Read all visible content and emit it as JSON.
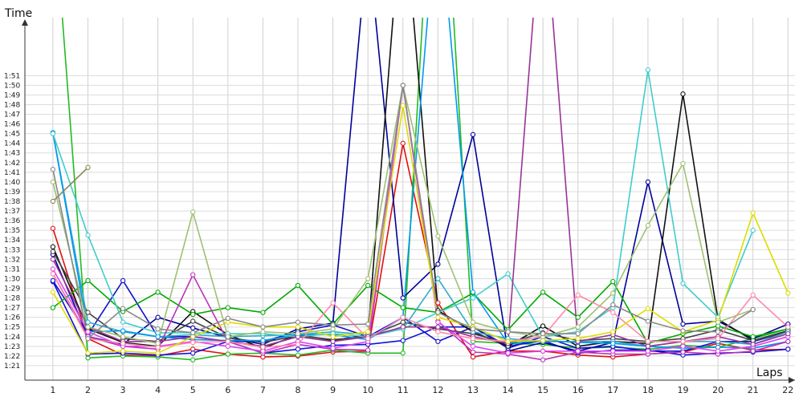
{
  "chart_data": {
    "type": "line",
    "xlabel": "Laps",
    "ylabel": "Time",
    "x": [
      1,
      2,
      3,
      4,
      5,
      6,
      7,
      8,
      9,
      10,
      11,
      12,
      13,
      14,
      15,
      16,
      17,
      18,
      19,
      20,
      21,
      22
    ],
    "xlim": [
      0.2,
      22.2
    ],
    "ylim": [
      79.5,
      117
    ],
    "y_ticks": [
      "1:21",
      "1:22",
      "1:23",
      "1:24",
      "1:25",
      "1:26",
      "1:27",
      "1:28",
      "1:29",
      "1:30",
      "1:31",
      "1:32",
      "1:33",
      "1:34",
      "1:35",
      "1:36",
      "1:37",
      "1:38",
      "1:39",
      "1:40",
      "1:41",
      "1:42",
      "1:43",
      "1:44",
      "1:45",
      "1:46",
      "1:47",
      "1:48",
      "1:49",
      "1:50",
      "1:51"
    ],
    "grid": true,
    "legend": "none",
    "series": [
      {
        "color": "#e01010",
        "values": [
          95.2,
          83.8,
          82.1,
          82.0,
          82.7,
          82.2,
          81.9,
          82.0,
          82.4,
          82.5,
          104.0,
          87.5,
          81.9,
          82.5,
          82.5,
          82.1,
          81.9,
          82.2,
          82.4,
          83.3,
          82.6,
          82.7
        ]
      },
      {
        "color": "#22bb22",
        "values": [
          130,
          81.8,
          82.0,
          81.9,
          81.6,
          82.2,
          82.3,
          82.1,
          82.6,
          82.3,
          82.3,
          144,
          83.5,
          83.3,
          83.2,
          82.8,
          82.9,
          82.7,
          83.1,
          82.9,
          83.8,
          84.8
        ]
      },
      {
        "color": "#1010dd",
        "values": [
          89.7,
          82.2,
          82.3,
          82.1,
          82.3,
          83.5,
          82.3,
          82.7,
          83.1,
          83.2,
          83.6,
          85.0,
          85.0,
          83.0,
          83.6,
          82.3,
          82.6,
          82.6,
          82.1,
          82.3,
          82.4,
          82.7
        ]
      },
      {
        "color": "#000099",
        "values": [
          92.5,
          84.0,
          83.2,
          86.0,
          84.9,
          83.9,
          83.2,
          84.8,
          85.4,
          125,
          88.0,
          91.5,
          104.9,
          82.5,
          83.4,
          82.5,
          83.4,
          100.0,
          85.3,
          85.6,
          83.8,
          85.3
        ]
      },
      {
        "color": "#1111cc",
        "values": [
          89.8,
          84.2,
          89.8,
          84.0,
          84.0,
          83.5,
          83.5,
          84.5,
          85.2,
          84.0,
          86.0,
          83.5,
          85.0,
          82.8,
          84.0,
          82.8,
          83.0,
          82.5,
          82.5,
          83.5,
          83.5,
          84.5
        ]
      },
      {
        "color": "#111111",
        "values": [
          93.3,
          84.8,
          83.4,
          83.0,
          86.6,
          84.2,
          82.8,
          84.2,
          83.6,
          84.2,
          130,
          86.7,
          84.5,
          83.0,
          85.1,
          83.0,
          83.5,
          83.3,
          109.1,
          85.8,
          83.6,
          84.6
        ]
      },
      {
        "color": "#444444",
        "values": [
          92.8,
          86.5,
          83.8,
          83.5,
          85.6,
          83.9,
          83.4,
          84.1,
          83.7,
          84.0,
          85.5,
          84.8,
          84.3,
          83.3,
          84.4,
          83.6,
          83.8,
          83.5,
          83.8,
          84.7,
          83.6,
          84.5
        ]
      },
      {
        "color": "#00aa00",
        "values": [
          87.0,
          89.8,
          86.6,
          88.6,
          86.3,
          87.0,
          86.5,
          89.3,
          85.3,
          89.3,
          87.0,
          86.5,
          88.5,
          84.7,
          88.6,
          86.0,
          89.7,
          83.3,
          84.3,
          85.1,
          84.0,
          84.8
        ]
      },
      {
        "color": "#33aacc",
        "values": [
          105.1,
          85.5,
          84.5,
          84.0,
          84.2,
          84.0,
          84.1,
          84.2,
          84.5,
          84.2,
          84.8,
          90.0,
          84.5,
          83.8,
          83.5,
          83.5,
          83.5,
          83.0,
          83.5,
          83.5,
          83.2,
          84.5
        ]
      },
      {
        "color": "#0099ee",
        "values": [
          105.1,
          84.5,
          84.6,
          84.0,
          83.7,
          83.6,
          83.6,
          84.2,
          84.2,
          83.7,
          86.0,
          130,
          88.6,
          83.3,
          83.6,
          83.4,
          83.3,
          83.0,
          82.8,
          82.9,
          82.8,
          83.5
        ]
      },
      {
        "color": "#40cccc",
        "values": [
          105.0,
          94.5,
          85.5,
          84.4,
          84.4,
          84.3,
          84.3,
          84.0,
          84.3,
          84.0,
          84.8,
          86.5,
          88.0,
          90.5,
          84.0,
          84.5,
          87.0,
          111.6,
          89.5,
          86.0,
          95.0,
          null
        ]
      },
      {
        "color": "#bb33bb",
        "values": [
          90.5,
          84.0,
          83.0,
          82.7,
          90.4,
          83.5,
          82.3,
          83.2,
          82.7,
          82.6,
          110,
          85.6,
          82.4,
          82.2,
          81.6,
          82.4,
          82.2,
          82.2,
          82.4,
          82.2,
          82.5,
          83.5
        ]
      },
      {
        "color": "#dd44ee",
        "values": [
          91.0,
          84.5,
          83.0,
          83.0,
          83.5,
          83.0,
          82.5,
          83.5,
          82.8,
          83.5,
          110,
          85.5,
          83.0,
          82.3,
          82.5,
          82.5,
          82.5,
          82.5,
          83.0,
          82.5,
          83.0,
          84.0
        ]
      },
      {
        "color": "#993399",
        "values": [
          92.0,
          85.0,
          83.5,
          83.5,
          84.0,
          83.5,
          83.0,
          84.0,
          83.5,
          84.0,
          85.0,
          85.0,
          84.0,
          83.3,
          130,
          83.5,
          84.2,
          83.0,
          83.5,
          84.0,
          83.2,
          84.3
        ]
      },
      {
        "color": "#ff88aa",
        "values": [
          90.5,
          83.8,
          83.3,
          82.9,
          83.4,
          83.5,
          82.9,
          83.2,
          87.5,
          83.8,
          86.0,
          84.5,
          83.8,
          83.5,
          84.0,
          88.3,
          86.5,
          83.5,
          83.5,
          83.8,
          88.3,
          85.0
        ]
      },
      {
        "color": "#dddd00",
        "values": [
          88.6,
          82.3,
          82.5,
          82.3,
          84.0,
          85.5,
          85.0,
          85.0,
          84.0,
          84.5,
          107.9,
          86.0,
          85.0,
          83.5,
          83.6,
          83.8,
          84.5,
          86.9,
          84.5,
          85.7,
          96.8,
          88.5
        ]
      },
      {
        "color": "#a0c070",
        "values": [
          100.0,
          85.0,
          84.0,
          83.3,
          96.9,
          84.0,
          84.5,
          84.3,
          84.8,
          90.0,
          110,
          94.4,
          85.5,
          84.5,
          84.0,
          85.0,
          88.5,
          95.5,
          101.9,
          85.5,
          86.8,
          null
        ]
      },
      {
        "color": "#888855",
        "values": [
          98.0,
          101.5,
          null,
          null,
          null,
          null,
          null,
          null,
          null,
          null,
          null,
          null,
          null,
          null,
          null,
          null,
          null,
          null,
          null,
          null,
          null,
          null
        ]
      },
      {
        "color": "#888888",
        "values": [
          101.3,
          83.8,
          86.9,
          84.8,
          84.4,
          85.9,
          85.0,
          85.5,
          85.2,
          85.3,
          110,
          86.5,
          84.8,
          84.5,
          84.3,
          84.3,
          87.3,
          85.6,
          84.6,
          84.5,
          86.8,
          null
        ]
      }
    ]
  }
}
